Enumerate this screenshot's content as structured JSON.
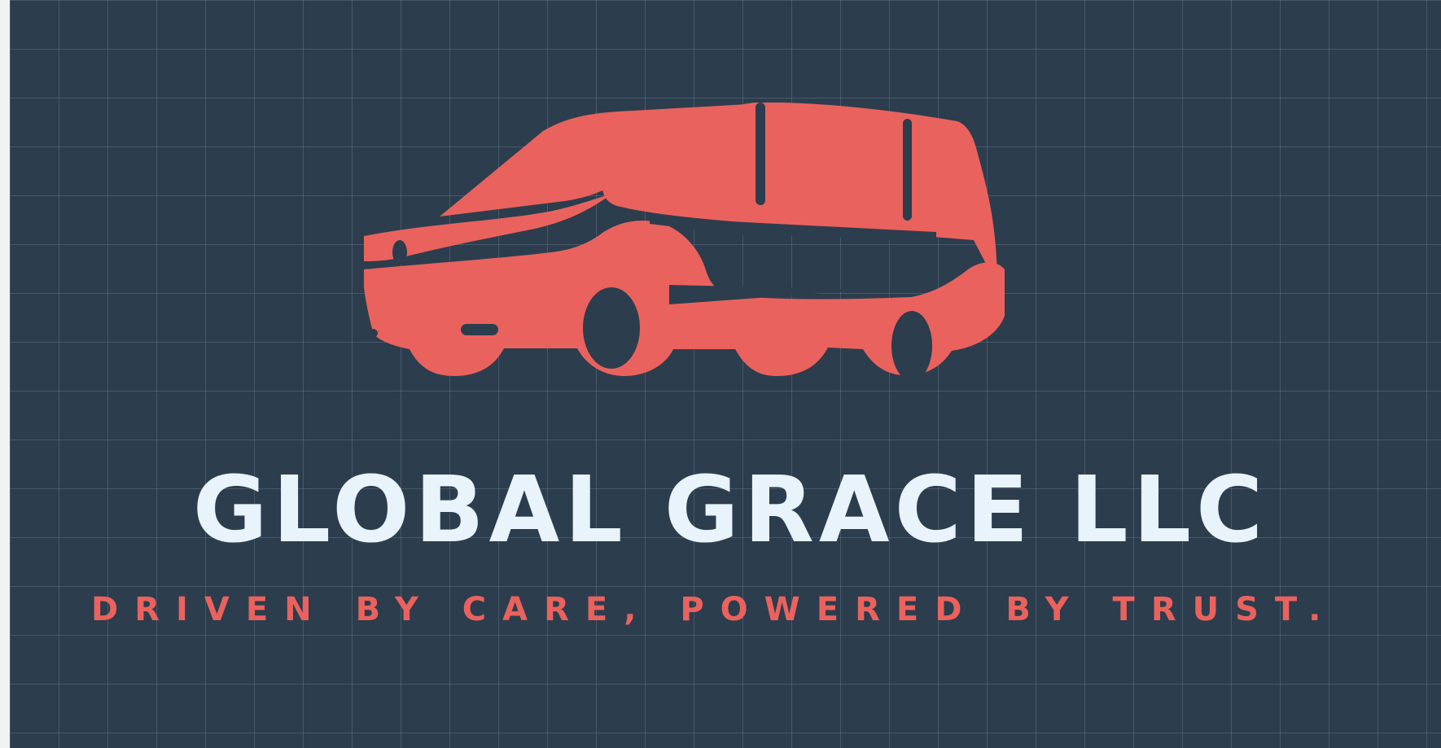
{
  "canvas": {
    "background_color": "#2c3d4e",
    "grid_color": "#8a9eb1",
    "accent_color": "#ea625d",
    "text_color": "#e8f3fb"
  },
  "logo": {
    "icon_name": "minivan-icon",
    "brand_name": "GLOBAL GRACE LLC",
    "tagline": "DRIVEN BY CARE, POWERED BY TRUST."
  }
}
